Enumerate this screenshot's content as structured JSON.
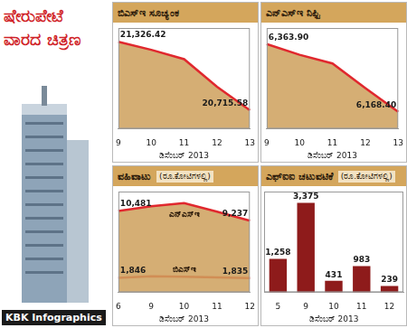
{
  "header": {
    "title": "ಷೇರುಪೇಟೆ ವಾರದ ಚಿತ್ರಣ",
    "credit": "KBK Infographics"
  },
  "chart_data": [
    {
      "type": "area",
      "title": "ಬಿಎಸ್‌ಇ ಸೂಚ್ಯಂಕ",
      "xlabel": "ಡಿಸೆಂಬರ್ 2013",
      "categories": [
        "9",
        "10",
        "11",
        "12",
        "13"
      ],
      "values": [
        21326.42,
        21255.26,
        21171.41,
        20925.61,
        20715.58
      ],
      "value_labels": [
        "21,326.42",
        null,
        null,
        null,
        "20,715.58"
      ],
      "color": "#e0282e",
      "ylim": [
        20550,
        21450
      ],
      "data_labels": true,
      "tick_labels": "x",
      "grid": false
    },
    {
      "type": "area",
      "title": "ಎನ್‌ಎಸ್‌ಇ ನಿಫ್ಟಿ",
      "xlabel": "ಡಿಸೆಂಬರ್ 2013",
      "categories": [
        "9",
        "10",
        "11",
        "12",
        "13"
      ],
      "values": [
        6363.9,
        6332.85,
        6307.9,
        6237.05,
        6168.4
      ],
      "value_labels": [
        "6,363.90",
        null,
        null,
        null,
        "6,168.40"
      ],
      "color": "#e0282e",
      "ylim": [
        6120,
        6410
      ],
      "data_labels": true,
      "tick_labels": "x",
      "grid": false
    },
    {
      "type": "line",
      "title": "ವಹಿವಾಟು",
      "subtitle": "(ರೂ.ಕೋಟಿಗಳಲ್ಲಿ)",
      "xlabel": "ಡಿಸೆಂಬರ್ 2013",
      "categories": [
        "6",
        "9",
        "10",
        "11",
        "12"
      ],
      "series": [
        {
          "name": "ಎನ್‌ಎಸ್‌ಇ",
          "type": "area",
          "color": "#e0282e",
          "values": [
            10481,
            11100,
            11500,
            10400,
            9237
          ],
          "value_labels": [
            "10,481",
            null,
            null,
            null,
            "9,237"
          ]
        },
        {
          "name": "ಬಿಎಸ್‌ಇ",
          "type": "line",
          "color": "#e0282e",
          "values": [
            1846,
            2050,
            2000,
            1900,
            1835
          ],
          "value_labels": [
            "1,846",
            null,
            null,
            null,
            "1,835"
          ]
        }
      ],
      "ylim": [
        0,
        13000
      ],
      "data_labels": true,
      "tick_labels": "x",
      "grid": false
    },
    {
      "type": "bar",
      "title": "ಎಫ್‌ಐಐ ಚಟುವಟಿಕೆ",
      "subtitle": "(ರೂ.ಕೋಟಿಗಳಲ್ಲಿ)",
      "xlabel": "ಡಿಸೆಂಬರ್ 2013",
      "categories": [
        "5",
        "9",
        "10",
        "11",
        "12"
      ],
      "values": [
        1258,
        3375,
        431,
        983,
        239
      ],
      "value_labels": [
        "1,258",
        "3,375",
        "431",
        "983",
        "239"
      ],
      "color": "#8e1b1b",
      "ylim": [
        0,
        3800
      ],
      "data_labels": true,
      "tick_labels": "x",
      "grid": false
    }
  ]
}
